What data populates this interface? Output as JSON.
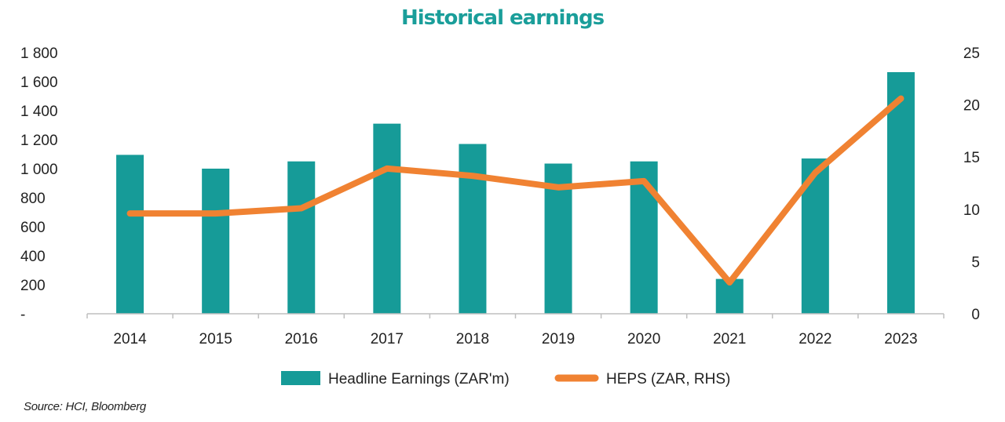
{
  "colors": {
    "title": "#1a9e9a",
    "bar": "#169b98",
    "line": "#f08232",
    "axis": "#bfbfbf"
  },
  "chart_data": {
    "type": "bar",
    "title": "Historical earnings",
    "categories": [
      "2014",
      "2015",
      "2016",
      "2017",
      "2018",
      "2019",
      "2020",
      "2021",
      "2022",
      "2023"
    ],
    "series": [
      {
        "name": "Headline Earnings (ZAR'm)",
        "type": "bar",
        "axis": "left",
        "values": [
          1095,
          1000,
          1050,
          1310,
          1170,
          1035,
          1050,
          240,
          1070,
          1665
        ]
      },
      {
        "name": "HEPS (ZAR, RHS)",
        "type": "line",
        "axis": "right",
        "values": [
          9.6,
          9.6,
          10.1,
          13.9,
          13.2,
          12.1,
          12.7,
          3.0,
          13.5,
          20.6
        ]
      }
    ],
    "left_axis": {
      "ylim": [
        0,
        1800
      ],
      "ticks": [
        0,
        200,
        400,
        600,
        800,
        1000,
        1200,
        1400,
        1600,
        1800
      ],
      "tick_labels": [
        "-",
        "200",
        "400",
        "600",
        "800",
        "1 000",
        "1 200",
        "1 400",
        "1 600",
        "1 800"
      ]
    },
    "right_axis": {
      "ylim": [
        0,
        25
      ],
      "ticks": [
        0,
        5,
        10,
        15,
        20,
        25
      ],
      "tick_labels": [
        "0",
        "5",
        "10",
        "15",
        "20",
        "25"
      ]
    },
    "grid": false,
    "legend": "bottom-center",
    "source": "Source: HCI, Bloomberg"
  }
}
